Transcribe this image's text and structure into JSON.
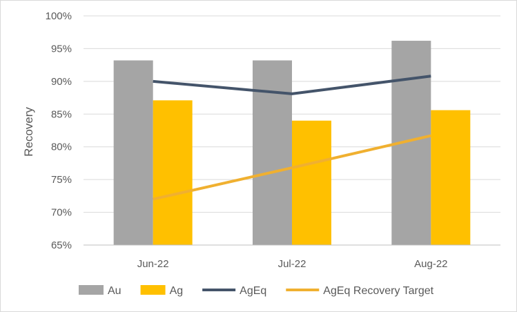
{
  "chart_data": {
    "type": "bar",
    "categories": [
      "Jun-22",
      "Jul-22",
      "Aug-22"
    ],
    "series": [
      {
        "name": "Au",
        "kind": "bar",
        "color": "#a5a5a5",
        "values": [
          93.2,
          93.2,
          96.2
        ]
      },
      {
        "name": "Ag",
        "kind": "bar",
        "color": "#ffc000",
        "values": [
          87.1,
          84.0,
          85.6
        ]
      },
      {
        "name": "AgEq",
        "kind": "line",
        "color": "#44546a",
        "values": [
          90.0,
          88.1,
          90.8
        ]
      },
      {
        "name": "AgEq Recovery Target",
        "kind": "line",
        "color": "#f0b030",
        "values": [
          72.0,
          76.8,
          81.7
        ]
      }
    ],
    "title": "",
    "xlabel": "",
    "ylabel": "Recovery",
    "ylim": [
      65,
      100
    ],
    "yticks": [
      "65%",
      "70%",
      "75%",
      "80%",
      "85%",
      "90%",
      "95%",
      "100%"
    ],
    "grid": true,
    "legend_position": "bottom"
  }
}
